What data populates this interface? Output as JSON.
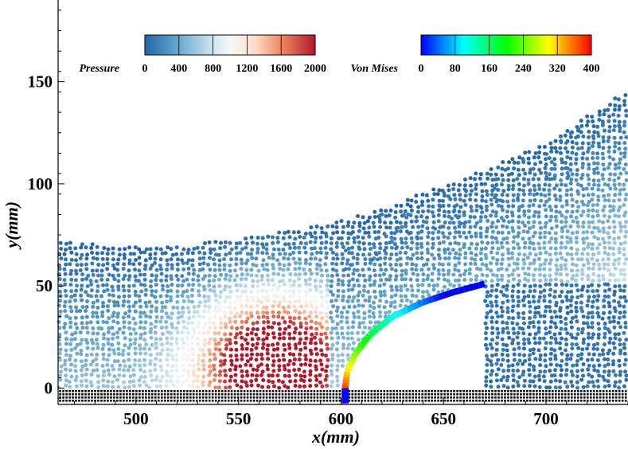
{
  "chart_data": {
    "type": "scatter",
    "title": "",
    "xlabel": "x(mm)",
    "ylabel": "y(mm)",
    "xlim": [
      462,
      740
    ],
    "ylim": [
      -8,
      190
    ],
    "x_ticks": [
      500,
      550,
      600,
      650,
      700
    ],
    "y_ticks": [
      0,
      50,
      100,
      150
    ],
    "grid": false,
    "colorbars": [
      {
        "name": "Pressure",
        "colormap": "blue-white-red",
        "range": [
          0,
          2000
        ],
        "ticks": [
          "0",
          "400",
          "800",
          "1200",
          "1600",
          "2000"
        ]
      },
      {
        "name": "Von Mises",
        "colormap": "jet",
        "range": [
          0,
          400
        ],
        "ticks": [
          "0",
          "80",
          "160",
          "240",
          "320",
          "400"
        ]
      }
    ],
    "fluid_region": {
      "field": "Pressure",
      "surface_profile": [
        {
          "x": 462,
          "y": 72
        },
        {
          "x": 500,
          "y": 70
        },
        {
          "x": 530,
          "y": 71
        },
        {
          "x": 560,
          "y": 75
        },
        {
          "x": 590,
          "y": 80
        },
        {
          "x": 620,
          "y": 88
        },
        {
          "x": 660,
          "y": 103
        },
        {
          "x": 700,
          "y": 120
        },
        {
          "x": 738,
          "y": 145
        }
      ],
      "high_pressure_zone": {
        "x_range": [
          515,
          600
        ],
        "y_range": [
          0,
          45
        ],
        "peak_pressure": 2000
      }
    },
    "elastic_plate": {
      "field": "Von Mises",
      "centerline": [
        {
          "x": 602,
          "y": -6
        },
        {
          "x": 602,
          "y": 0
        },
        {
          "x": 603,
          "y": 8
        },
        {
          "x": 607,
          "y": 17
        },
        {
          "x": 614,
          "y": 26
        },
        {
          "x": 625,
          "y": 35
        },
        {
          "x": 640,
          "y": 42
        },
        {
          "x": 655,
          "y": 47
        },
        {
          "x": 670,
          "y": 51
        }
      ],
      "stress_range": [
        0,
        400
      ]
    },
    "wall": {
      "x_range": [
        462,
        740
      ],
      "y_range": [
        -8,
        -1
      ]
    }
  }
}
